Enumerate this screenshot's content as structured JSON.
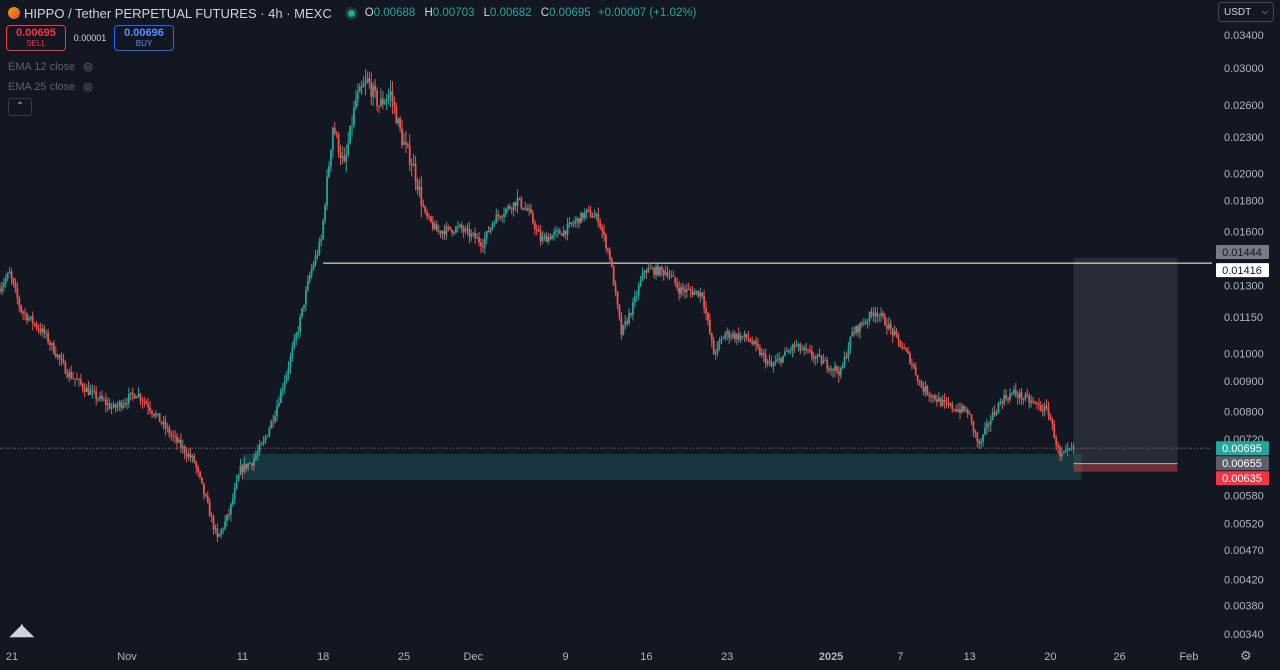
{
  "header": {
    "title": "HIPPO / Tether PERPETUAL FUTURES · 4h · MEXC",
    "ohlc": {
      "o_label": "O",
      "o": "0.00688",
      "h_label": "H",
      "h": "0.00703",
      "l_label": "L",
      "l": "0.00682",
      "c_label": "C",
      "c": "0.00695",
      "change": "+0.00007 (+1.02%)"
    }
  },
  "trade": {
    "sell_price": "0.00695",
    "sell_label": "SELL",
    "spread": "0.00001",
    "buy_price": "0.00696",
    "buy_label": "BUY"
  },
  "indicators": [
    {
      "label": "EMA 12 close"
    },
    {
      "label": "EMA 25 close"
    }
  ],
  "currency_select": {
    "value": "USDT"
  },
  "colors": {
    "background": "#131722",
    "up": "#26a69a",
    "down": "#ef5350",
    "zone": "#26a69a",
    "box": "#787b86",
    "line": "#ffffff"
  },
  "chart_data": {
    "type": "candlestick",
    "interval": "4h",
    "y_axis": {
      "ticks": [
        "0.03400",
        "0.03000",
        "0.02600",
        "0.02300",
        "0.02000",
        "0.01800",
        "0.01600",
        "0.01300",
        "0.01150",
        "0.01000",
        "0.00900",
        "0.00800",
        "0.00720",
        "0.00580",
        "0.00520",
        "0.00470",
        "0.00420",
        "0.00380",
        "0.00340"
      ],
      "tick_values": [
        0.034,
        0.03,
        0.026,
        0.023,
        0.02,
        0.018,
        0.016,
        0.013,
        0.0115,
        0.01,
        0.009,
        0.008,
        0.0072,
        0.0058,
        0.0052,
        0.0047,
        0.0042,
        0.0038,
        0.0034
      ],
      "ylim": [
        0.0033,
        0.0355
      ],
      "scale": "log"
    },
    "x_axis": {
      "labels": [
        "21",
        "Nov",
        "11",
        "18",
        "25",
        "Dec",
        "9",
        "16",
        "23",
        "2025",
        "7",
        "13",
        "20",
        "26",
        "Feb"
      ],
      "start": "2024-10-21",
      "end": "2025-02-03"
    },
    "price_path": [
      [
        "2024-10-21",
        0.0128
      ],
      [
        "2024-10-22",
        0.0136
      ],
      [
        "2024-10-23",
        0.0118
      ],
      [
        "2024-10-25",
        0.0108
      ],
      [
        "2024-10-27",
        0.0093
      ],
      [
        "2024-10-29",
        0.0086
      ],
      [
        "2024-10-31",
        0.0081
      ],
      [
        "2024-11-02",
        0.0086
      ],
      [
        "2024-11-03",
        0.0082
      ],
      [
        "2024-11-05",
        0.0073
      ],
      [
        "2024-11-07",
        0.0066
      ],
      [
        "2024-11-08",
        0.0057
      ],
      [
        "2024-11-09",
        0.0049
      ],
      [
        "2024-11-10",
        0.0054
      ],
      [
        "2024-11-11",
        0.0064
      ],
      [
        "2024-11-12",
        0.0066
      ],
      [
        "2024-11-13",
        0.0071
      ],
      [
        "2024-11-14",
        0.008
      ],
      [
        "2024-11-15",
        0.0093
      ],
      [
        "2024-11-16",
        0.011
      ],
      [
        "2024-11-17",
        0.0135
      ],
      [
        "2024-11-18",
        0.0155
      ],
      [
        "2024-11-19",
        0.024
      ],
      [
        "2024-11-20",
        0.0205
      ],
      [
        "2024-11-21",
        0.0265
      ],
      [
        "2024-11-22",
        0.0285
      ],
      [
        "2024-11-23",
        0.026
      ],
      [
        "2024-11-24",
        0.0272
      ],
      [
        "2024-11-25",
        0.0228
      ],
      [
        "2024-11-26",
        0.0205
      ],
      [
        "2024-11-27",
        0.017
      ],
      [
        "2024-11-28",
        0.016
      ],
      [
        "2024-11-30",
        0.0162
      ],
      [
        "2024-12-02",
        0.0153
      ],
      [
        "2024-12-03",
        0.0168
      ],
      [
        "2024-12-05",
        0.018
      ],
      [
        "2024-12-06",
        0.0172
      ],
      [
        "2024-12-07",
        0.0155
      ],
      [
        "2024-12-09",
        0.016
      ],
      [
        "2024-12-11",
        0.0172
      ],
      [
        "2024-12-12",
        0.0168
      ],
      [
        "2024-12-13",
        0.0145
      ],
      [
        "2024-12-14",
        0.0108
      ],
      [
        "2024-12-15",
        0.012
      ],
      [
        "2024-12-16",
        0.0138
      ],
      [
        "2024-12-18",
        0.0137
      ],
      [
        "2024-12-19",
        0.0128
      ],
      [
        "2024-12-21",
        0.0126
      ],
      [
        "2024-12-22",
        0.01
      ],
      [
        "2024-12-23",
        0.0108
      ],
      [
        "2024-12-25",
        0.0106
      ],
      [
        "2024-12-27",
        0.0095
      ],
      [
        "2024-12-29",
        0.0103
      ],
      [
        "2024-12-31",
        0.0098
      ],
      [
        "2025-01-02",
        0.0093
      ],
      [
        "2025-01-03",
        0.0108
      ],
      [
        "2025-01-05",
        0.0118
      ],
      [
        "2025-01-06",
        0.0112
      ],
      [
        "2025-01-08",
        0.0098
      ],
      [
        "2025-01-09",
        0.0088
      ],
      [
        "2025-01-11",
        0.0082
      ],
      [
        "2025-01-13",
        0.008
      ],
      [
        "2025-01-14",
        0.007
      ],
      [
        "2025-01-15",
        0.0078
      ],
      [
        "2025-01-16",
        0.0084
      ],
      [
        "2025-01-17",
        0.0086
      ],
      [
        "2025-01-19",
        0.0082
      ],
      [
        "2025-01-20",
        0.008
      ],
      [
        "2025-01-21",
        0.0067
      ],
      [
        "2025-01-22",
        0.0069
      ]
    ],
    "horizontal_line": {
      "value": 0.01416,
      "label": "0.01416"
    },
    "support_zone": {
      "from": "2024-11-11",
      "to": "2025-01-22",
      "high": 0.0068,
      "low": 0.00615
    },
    "position_box": {
      "from": "2025-01-22",
      "to": "2025-01-31",
      "top": 0.01444,
      "entry": 0.00655,
      "stop": 0.00635
    },
    "price_labels": [
      {
        "value": 0.01444,
        "label": "0.01444",
        "kind": "box"
      },
      {
        "value": 0.01416,
        "label": "0.01416",
        "kind": "line"
      },
      {
        "value": 0.00695,
        "label": "0.00695",
        "kind": "last"
      },
      {
        "value": 0.00655,
        "label": "0.00655",
        "kind": "entry"
      },
      {
        "value": 0.00635,
        "label": "0.00635",
        "kind": "stop"
      }
    ],
    "last_price": 0.00695
  }
}
